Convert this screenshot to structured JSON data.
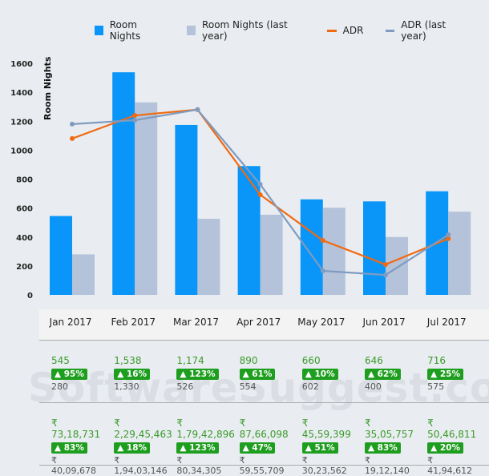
{
  "chart_data": {
    "type": "bar",
    "ylabel": "Room Nights",
    "ylim": [
      0,
      1600
    ],
    "yticks": [
      0,
      200,
      400,
      600,
      800,
      1000,
      1200,
      1400,
      1600
    ],
    "categories": [
      "Jan 2017",
      "Feb 2017",
      "Mar 2017",
      "Apr 2017",
      "May 2017",
      "Jun 2017",
      "Jul 2017"
    ],
    "series": [
      {
        "name": "Room Nights",
        "kind": "bar",
        "color": "#0a95f8",
        "values": [
          545,
          1538,
          1174,
          890,
          660,
          646,
          716
        ]
      },
      {
        "name": "Room Nights (last year)",
        "kind": "bar",
        "color": "#b4c3da",
        "values": [
          280,
          1330,
          526,
          554,
          602,
          400,
          575
        ]
      },
      {
        "name": "ADR",
        "kind": "line",
        "color": "#f06a12",
        "values": [
          1080,
          1240,
          1280,
          692,
          376,
          210,
          388
        ]
      },
      {
        "name": "ADR (last year)",
        "kind": "line",
        "color": "#7f9cc0",
        "values": [
          1180,
          1207,
          1280,
          764,
          166,
          138,
          415
        ]
      }
    ],
    "grid": false,
    "legend": "top"
  },
  "table": {
    "months": [
      "Jan 2017",
      "Feb 2017",
      "Mar 2017",
      "Apr 2017",
      "May 2017",
      "Jun 2017",
      "Jul 2017"
    ],
    "room_nights": [
      {
        "value": "545",
        "change": "95%",
        "prev": "280"
      },
      {
        "value": "1,538",
        "change": "16%",
        "prev": "1,330"
      },
      {
        "value": "1,174",
        "change": "123%",
        "prev": "526"
      },
      {
        "value": "890",
        "change": "61%",
        "prev": "554"
      },
      {
        "value": "660",
        "change": "10%",
        "prev": "602"
      },
      {
        "value": "646",
        "change": "62%",
        "prev": "400"
      },
      {
        "value": "716",
        "change": "25%",
        "prev": "575"
      }
    ],
    "revenue": [
      {
        "value": "₹ 73,18,731",
        "change": "83%",
        "prev": "₹ 40,09,678"
      },
      {
        "value": "₹ 2,29,45,463",
        "change": "18%",
        "prev": "₹ 1,94,03,146"
      },
      {
        "value": "₹ 1,79,42,896",
        "change": "123%",
        "prev": "₹ 80,34,305"
      },
      {
        "value": "₹ 87,66,098",
        "change": "47%",
        "prev": "₹ 59,55,709"
      },
      {
        "value": "₹ 45,59,399",
        "change": "51%",
        "prev": "₹ 30,23,562"
      },
      {
        "value": "₹ 35,05,757",
        "change": "83%",
        "prev": "₹ 19,12,140"
      },
      {
        "value": "₹ 50,46,811",
        "change": "20%",
        "prev": "₹ 41,94,612"
      }
    ]
  },
  "watermark": "SoftwareSuggest.com"
}
